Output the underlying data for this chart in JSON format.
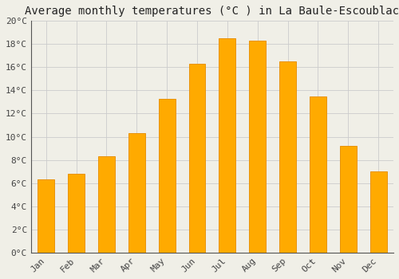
{
  "title": "Average monthly temperatures (°C ) in La Baule-Escoublac",
  "months": [
    "Jan",
    "Feb",
    "Mar",
    "Apr",
    "May",
    "Jun",
    "Jul",
    "Aug",
    "Sep",
    "Oct",
    "Nov",
    "Dec"
  ],
  "values": [
    6.3,
    6.8,
    8.3,
    10.3,
    13.3,
    16.3,
    18.5,
    18.3,
    16.5,
    13.5,
    9.2,
    7.0
  ],
  "bar_color": "#FFAA00",
  "bar_edge_color": "#E8930A",
  "background_color": "#F0EFE7",
  "plot_bg_color": "#F0EFE7",
  "grid_color": "#CCCCCC",
  "spine_color": "#555555",
  "ylim": [
    0,
    20
  ],
  "ytick_step": 2,
  "title_fontsize": 10,
  "tick_fontsize": 8,
  "bar_width": 0.55,
  "figsize": [
    5.0,
    3.5
  ],
  "dpi": 100
}
